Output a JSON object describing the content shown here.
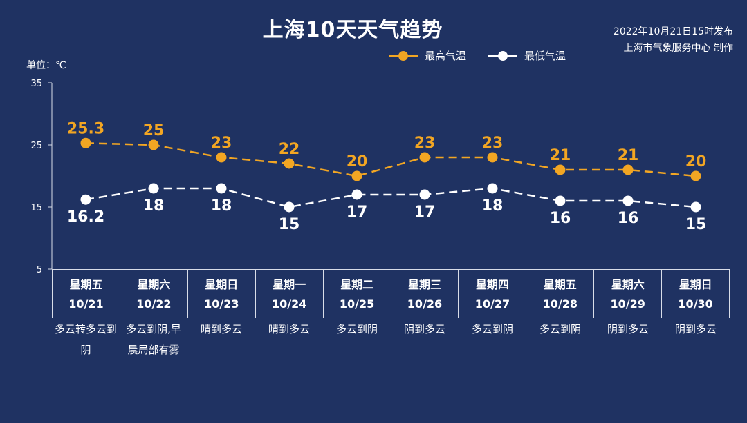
{
  "title": "上海10天天气趋势",
  "publish_time": "2022年10月21日15时发布",
  "publisher": "上海市气象服务中心 制作",
  "unit_label": "单位：℃",
  "colors": {
    "background": "#1f3262",
    "high": "#f2a623",
    "low": "#ffffff",
    "axis": "#d8dde8"
  },
  "legend": [
    {
      "label": "最高气温",
      "color": "#f2a623"
    },
    {
      "label": "最低气温",
      "color": "#ffffff"
    }
  ],
  "days": [
    {
      "weekday": "星期五",
      "date": "10/21",
      "weather": "多云转多云到阴"
    },
    {
      "weekday": "星期六",
      "date": "10/22",
      "weather": "多云到阴,早晨局部有雾"
    },
    {
      "weekday": "星期日",
      "date": "10/23",
      "weather": "晴到多云"
    },
    {
      "weekday": "星期一",
      "date": "10/24",
      "weather": "晴到多云"
    },
    {
      "weekday": "星期二",
      "date": "10/25",
      "weather": "多云到阴"
    },
    {
      "weekday": "星期三",
      "date": "10/26",
      "weather": "阴到多云"
    },
    {
      "weekday": "星期四",
      "date": "10/27",
      "weather": "多云到阴"
    },
    {
      "weekday": "星期五",
      "date": "10/28",
      "weather": "多云到阴"
    },
    {
      "weekday": "星期六",
      "date": "10/29",
      "weather": "阴到多云"
    },
    {
      "weekday": "星期日",
      "date": "10/30",
      "weather": "阴到多云"
    }
  ],
  "chart_data": {
    "type": "line",
    "title": "上海10天天气趋势",
    "categories": [
      "10/21",
      "10/22",
      "10/23",
      "10/24",
      "10/25",
      "10/26",
      "10/27",
      "10/28",
      "10/29",
      "10/30"
    ],
    "series": [
      {
        "name": "最高气温",
        "values": [
          25.3,
          25,
          23,
          22,
          20,
          23,
          23,
          21,
          21,
          20
        ],
        "labels": [
          "25.3",
          "25",
          "23",
          "22",
          "20",
          "23",
          "23",
          "21",
          "21",
          "20"
        ],
        "color": "#f2a623",
        "line_style": "dashed"
      },
      {
        "name": "最低气温",
        "values": [
          16.2,
          18,
          18,
          15,
          17,
          17,
          18,
          16,
          16,
          15
        ],
        "labels": [
          "16.2",
          "18",
          "18",
          "15",
          "17",
          "17",
          "18",
          "16",
          "16",
          "15"
        ],
        "color": "#ffffff",
        "line_style": "dashed"
      }
    ],
    "ylabel": "单位：℃",
    "ylim": [
      5,
      35
    ],
    "yticks": [
      5,
      15,
      25,
      35
    ],
    "grid": false,
    "legend_position": "top-center"
  }
}
